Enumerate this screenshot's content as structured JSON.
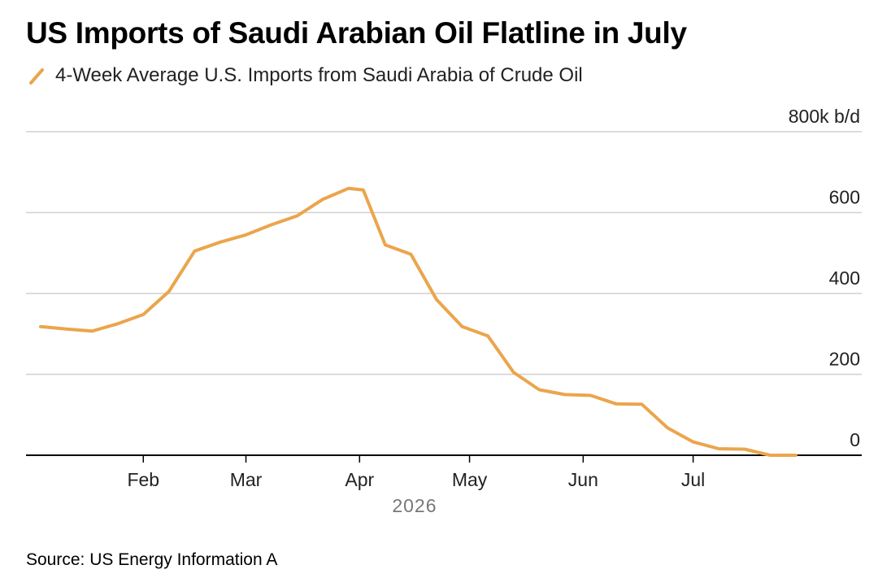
{
  "title": "US Imports of Saudi Arabian Oil Flatline in July",
  "legend_label": "4-Week Average U.S. Imports from Saudi Arabia of Crude Oil",
  "source": "Source: US Energy Information A",
  "colors": {
    "line": "#EBA54C",
    "grid": "#d0d0d0",
    "axis": "#000000",
    "text": "#222222",
    "year_text": "#777777"
  },
  "chart_data": {
    "type": "line",
    "title": "US Imports of Saudi Arabian Oil Flatline in July",
    "series": [
      {
        "name": "4-Week Average U.S. Imports from Saudi Arabia of Crude Oil",
        "points": [
          [
            "2026-01-04",
            318
          ],
          [
            "2026-01-11",
            312
          ],
          [
            "2026-01-18",
            307
          ],
          [
            "2026-01-25",
            325
          ],
          [
            "2026-02-01",
            348
          ],
          [
            "2026-02-08",
            405
          ],
          [
            "2026-02-15",
            505
          ],
          [
            "2026-02-22",
            527
          ],
          [
            "2026-03-01",
            545
          ],
          [
            "2026-03-08",
            570
          ],
          [
            "2026-03-15",
            592
          ],
          [
            "2026-03-22",
            633
          ],
          [
            "2026-03-29",
            660
          ],
          [
            "2026-04-02",
            656
          ],
          [
            "2026-04-08",
            520
          ],
          [
            "2026-04-15",
            497
          ],
          [
            "2026-04-22",
            385
          ],
          [
            "2026-04-29",
            318
          ],
          [
            "2026-05-06",
            295
          ],
          [
            "2026-05-13",
            205
          ],
          [
            "2026-05-20",
            162
          ],
          [
            "2026-05-27",
            150
          ],
          [
            "2026-06-03",
            148
          ],
          [
            "2026-06-10",
            127
          ],
          [
            "2026-06-17",
            126
          ],
          [
            "2026-06-24",
            68
          ],
          [
            "2026-07-01",
            33
          ],
          [
            "2026-07-08",
            16
          ],
          [
            "2026-07-15",
            15
          ],
          [
            "2026-07-22",
            0
          ],
          [
            "2026-07-29",
            0
          ]
        ]
      }
    ],
    "x_ticks": [
      {
        "label": "Feb",
        "date": "2026-02-01"
      },
      {
        "label": "Mar",
        "date": "2026-03-01"
      },
      {
        "label": "Apr",
        "date": "2026-04-01"
      },
      {
        "label": "May",
        "date": "2026-05-01"
      },
      {
        "label": "Jun",
        "date": "2026-06-01"
      },
      {
        "label": "Jul",
        "date": "2026-07-01"
      }
    ],
    "x_year_label": "2026",
    "xlim": [
      "2025-12-31",
      "2026-08-16"
    ],
    "y_ticks": [
      {
        "value": 0,
        "label": "0"
      },
      {
        "value": 200,
        "label": "200"
      },
      {
        "value": 400,
        "label": "400"
      },
      {
        "value": 600,
        "label": "600"
      },
      {
        "value": 800,
        "label": "800k b/d"
      }
    ],
    "ylim": [
      0,
      800
    ],
    "y_axis_side": "right",
    "grid": true,
    "legend_position": "top-left"
  }
}
